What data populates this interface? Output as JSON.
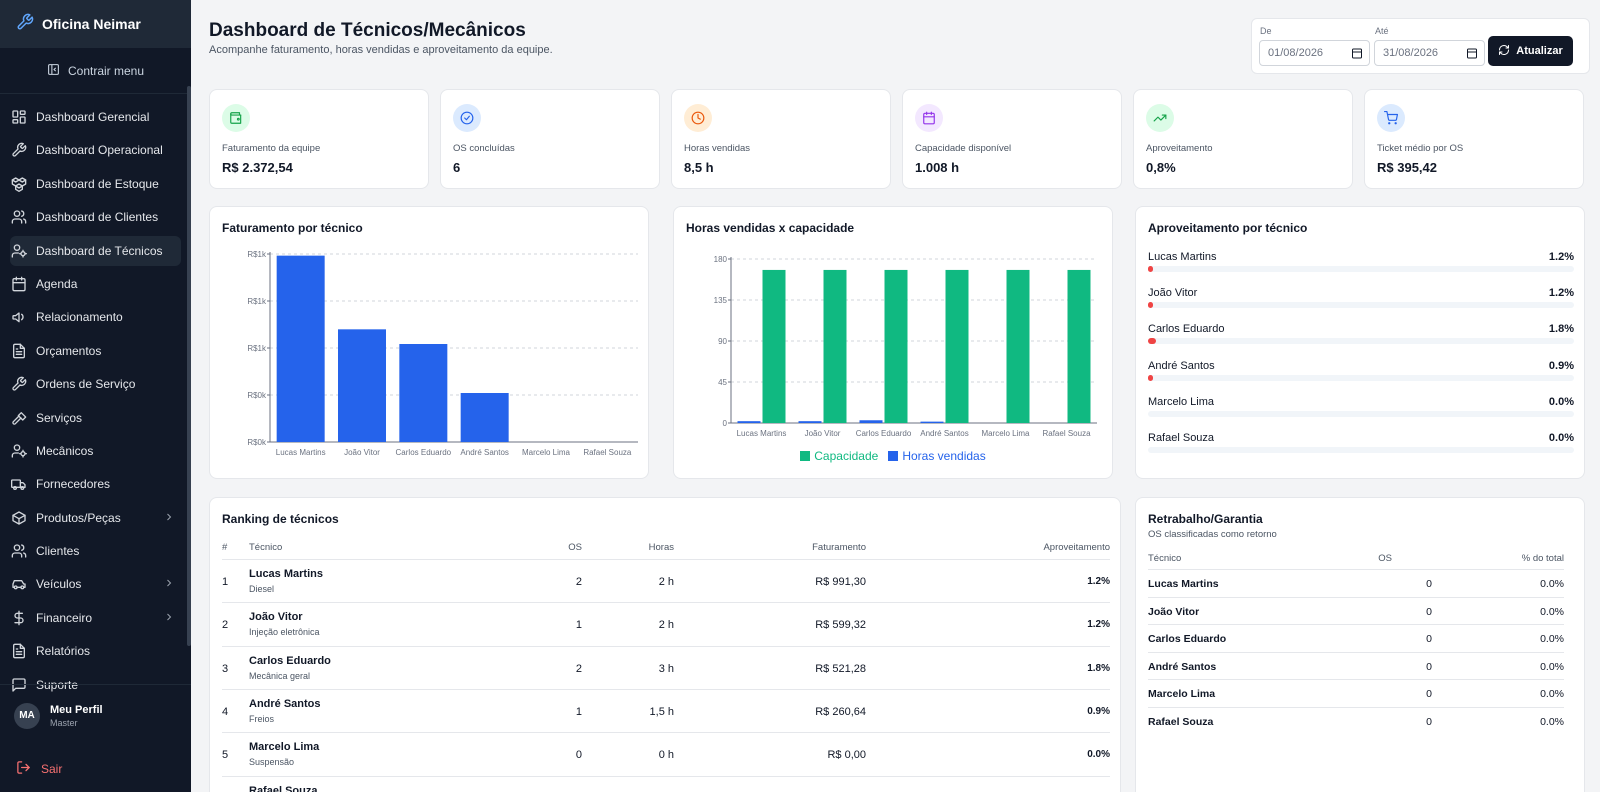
{
  "app": {
    "name": "Oficina Neimar"
  },
  "sidebar": {
    "collapse_label": "Contrair menu",
    "items": [
      {
        "label": "Dashboard Gerencial",
        "icon": "layout-dashboard-icon",
        "active": false,
        "has_children": false
      },
      {
        "label": "Dashboard Operacional",
        "icon": "wrench-icon",
        "active": false,
        "has_children": false
      },
      {
        "label": "Dashboard de Estoque",
        "icon": "boxes-icon",
        "active": false,
        "has_children": false
      },
      {
        "label": "Dashboard de Clientes",
        "icon": "users-icon",
        "active": false,
        "has_children": false
      },
      {
        "label": "Dashboard de Técnicos",
        "icon": "user-cog-icon",
        "active": true,
        "has_children": false
      },
      {
        "label": "Agenda",
        "icon": "calendar-icon",
        "active": false,
        "has_children": false
      },
      {
        "label": "Relacionamento",
        "icon": "megaphone-icon",
        "active": false,
        "has_children": false
      },
      {
        "label": "Orçamentos",
        "icon": "file-text-icon",
        "active": false,
        "has_children": false
      },
      {
        "label": "Ordens de Serviço",
        "icon": "wrench-icon",
        "active": false,
        "has_children": false
      },
      {
        "label": "Serviços",
        "icon": "hammer-icon",
        "active": false,
        "has_children": false
      },
      {
        "label": "Mecânicos",
        "icon": "user-cog-icon",
        "active": false,
        "has_children": false
      },
      {
        "label": "Fornecedores",
        "icon": "truck-icon",
        "active": false,
        "has_children": false
      },
      {
        "label": "Produtos/Peças",
        "icon": "package-icon",
        "active": false,
        "has_children": true
      },
      {
        "label": "Clientes",
        "icon": "users-icon",
        "active": false,
        "has_children": false
      },
      {
        "label": "Veículos",
        "icon": "car-icon",
        "active": false,
        "has_children": true
      },
      {
        "label": "Financeiro",
        "icon": "dollar-icon",
        "active": false,
        "has_children": true
      },
      {
        "label": "Relatórios",
        "icon": "file-text-icon",
        "active": false,
        "has_children": false
      },
      {
        "label": "Suporte",
        "icon": "message-square-icon",
        "active": false,
        "has_children": false
      }
    ],
    "profile": {
      "initials": "MA",
      "name": "Meu Perfil",
      "role": "Master"
    },
    "logout_label": "Sair"
  },
  "header": {
    "title": "Dashboard de Técnicos/Mecânicos",
    "subtitle": "Acompanhe faturamento, horas vendidas e aproveitamento da equipe.",
    "filter": {
      "from_label": "De",
      "from_value": "01/08/2026",
      "to_label": "Até",
      "to_value": "31/08/2026",
      "refresh_label": "Atualizar"
    }
  },
  "kpis": [
    {
      "label": "Faturamento da equipe",
      "value": "R$ 2.372,54",
      "icon": "wallet-icon",
      "color": "#16a34a",
      "bg": "#dcfce7"
    },
    {
      "label": "OS concluídas",
      "value": "6",
      "icon": "check-circle-icon",
      "color": "#2563eb",
      "bg": "#dbeafe"
    },
    {
      "label": "Horas vendidas",
      "value": "8,5 h",
      "icon": "clock-icon",
      "color": "#ea580c",
      "bg": "#ffedd5"
    },
    {
      "label": "Capacidade disponível",
      "value": "1.008 h",
      "icon": "calendar-icon",
      "color": "#9333ea",
      "bg": "#f3e8ff"
    },
    {
      "label": "Aproveitamento",
      "value": "0,8%",
      "icon": "trending-up-icon",
      "color": "#16a34a",
      "bg": "#dcfce7"
    },
    {
      "label": "Ticket médio por OS",
      "value": "R$ 395,42",
      "icon": "cart-icon",
      "color": "#2563eb",
      "bg": "#dbeafe"
    }
  ],
  "chart_data": [
    {
      "type": "bar",
      "title": "Faturamento por técnico",
      "categories": [
        "Lucas Martins",
        "João Vitor",
        "Carlos Eduardo",
        "André Santos",
        "Marcelo Lima",
        "Rafael Souza"
      ],
      "values": [
        991.3,
        599.32,
        521.28,
        260.64,
        0,
        0
      ],
      "yticks": [
        "R$0k",
        "R$0k",
        "R$1k",
        "R$1k",
        "R$1k"
      ],
      "ylim": [
        0,
        1000
      ],
      "grid": true,
      "color": "#2563eb"
    },
    {
      "type": "bar",
      "title": "Horas vendidas x capacidade",
      "categories": [
        "Lucas Martins",
        "João Vitor",
        "Carlos Eduardo",
        "André Santos",
        "Marcelo Lima",
        "Rafael Souza"
      ],
      "series": [
        {
          "name": "Horas vendidas",
          "values": [
            2,
            2,
            3,
            1.5,
            0,
            0
          ],
          "color": "#2563eb"
        },
        {
          "name": "Capacidade",
          "values": [
            168,
            168,
            168,
            168,
            168,
            168
          ],
          "color": "#10b981"
        }
      ],
      "yticks": [
        "0",
        "45",
        "90",
        "135",
        "180"
      ],
      "ylim": [
        0,
        180
      ],
      "grid": true,
      "legend": "bottom"
    }
  ],
  "utilization": {
    "title": "Aproveitamento por técnico",
    "rows": [
      {
        "name": "Lucas Martins",
        "value": "1.2%",
        "pct": 1.2
      },
      {
        "name": "João Vitor",
        "value": "1.2%",
        "pct": 1.2
      },
      {
        "name": "Carlos Eduardo",
        "value": "1.8%",
        "pct": 1.8
      },
      {
        "name": "André Santos",
        "value": "0.9%",
        "pct": 0.9
      },
      {
        "name": "Marcelo Lima",
        "value": "0.0%",
        "pct": 0
      },
      {
        "name": "Rafael Souza",
        "value": "0.0%",
        "pct": 0
      }
    ]
  },
  "ranking": {
    "title": "Ranking de técnicos",
    "columns": {
      "rank": "#",
      "tech": "Técnico",
      "os": "OS",
      "hours": "Horas",
      "revenue": "Faturamento",
      "util": "Aproveitamento"
    },
    "rows": [
      {
        "rank": "1",
        "name": "Lucas Martins",
        "spec": "Diesel",
        "os": "2",
        "hours": "2 h",
        "revenue": "R$ 991,30",
        "util": "1.2%"
      },
      {
        "rank": "2",
        "name": "João Vitor",
        "spec": "Injeção eletrônica",
        "os": "1",
        "hours": "2 h",
        "revenue": "R$ 599,32",
        "util": "1.2%"
      },
      {
        "rank": "3",
        "name": "Carlos Eduardo",
        "spec": "Mecânica geral",
        "os": "2",
        "hours": "3 h",
        "revenue": "R$ 521,28",
        "util": "1.8%"
      },
      {
        "rank": "4",
        "name": "André Santos",
        "spec": "Freios",
        "os": "1",
        "hours": "1,5 h",
        "revenue": "R$ 260,64",
        "util": "0.9%"
      },
      {
        "rank": "5",
        "name": "Marcelo Lima",
        "spec": "Suspensão",
        "os": "0",
        "hours": "0 h",
        "revenue": "R$ 0,00",
        "util": "0.0%"
      },
      {
        "rank": "",
        "name": "Rafael Souza",
        "spec": "",
        "os": "",
        "hours": "",
        "revenue": "",
        "util": ""
      }
    ]
  },
  "rework": {
    "title": "Retrabalho/Garantia",
    "subtitle": "OS classificadas como retorno",
    "columns": {
      "tech": "Técnico",
      "os": "OS",
      "pct": "% do total"
    },
    "rows": [
      {
        "name": "Lucas Martins",
        "os": "0",
        "pct": "0.0%"
      },
      {
        "name": "João Vitor",
        "os": "0",
        "pct": "0.0%"
      },
      {
        "name": "Carlos Eduardo",
        "os": "0",
        "pct": "0.0%"
      },
      {
        "name": "André Santos",
        "os": "0",
        "pct": "0.0%"
      },
      {
        "name": "Marcelo Lima",
        "os": "0",
        "pct": "0.0%"
      },
      {
        "name": "Rafael Souza",
        "os": "0",
        "pct": "0.0%"
      }
    ]
  }
}
